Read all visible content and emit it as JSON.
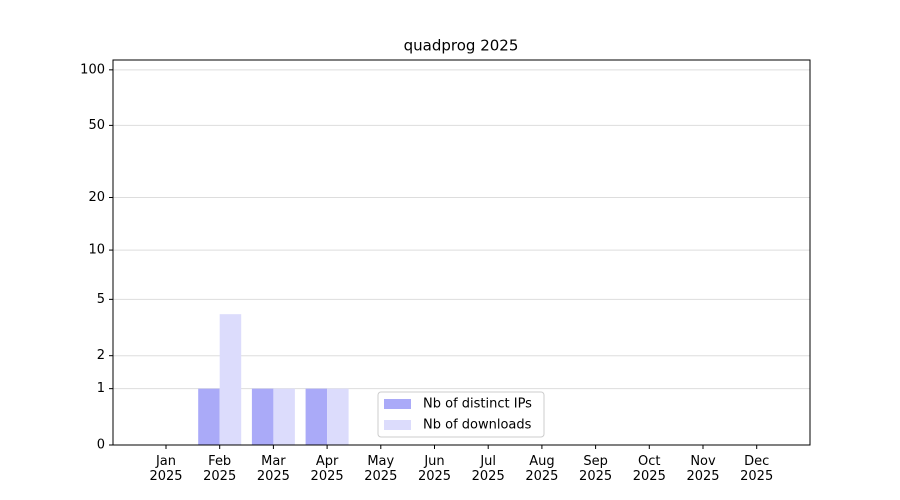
{
  "chart_data": {
    "type": "bar",
    "title": "quadprog 2025",
    "categories": [
      "Jan\n2025",
      "Feb\n2025",
      "Mar\n2025",
      "Apr\n2025",
      "May\n2025",
      "Jun\n2025",
      "Jul\n2025",
      "Aug\n2025",
      "Sep\n2025",
      "Oct\n2025",
      "Nov\n2025",
      "Dec\n2025"
    ],
    "series": [
      {
        "name": "Nb of distinct IPs",
        "color": "#aaaaf8",
        "values": [
          0,
          1,
          1,
          1,
          0,
          0,
          0,
          0,
          0,
          0,
          0,
          0
        ]
      },
      {
        "name": "Nb of downloads",
        "color": "#dcdcfc",
        "values": [
          0,
          4,
          1,
          1,
          0,
          0,
          0,
          0,
          0,
          0,
          0,
          0
        ]
      }
    ],
    "yscale": "log1p",
    "ylim": [
      0,
      113
    ],
    "yticks": [
      0,
      1,
      2,
      5,
      10,
      20,
      50,
      100
    ],
    "grid": true,
    "legend": "lower center"
  }
}
